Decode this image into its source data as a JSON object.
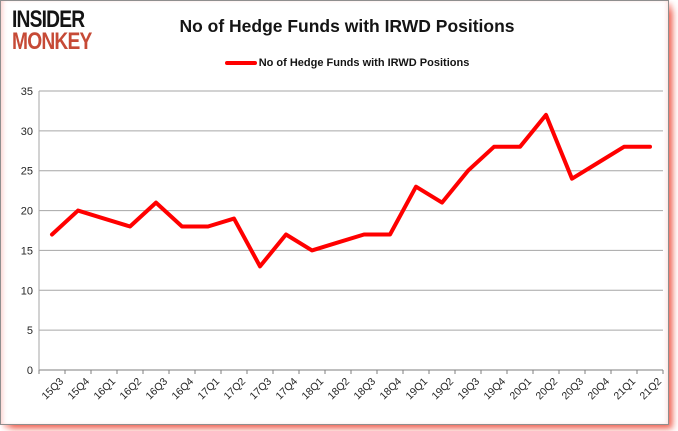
{
  "logo": {
    "line1": "INSIDER",
    "line2": "MONKEY"
  },
  "header": {
    "title": "No of Hedge Funds with IRWD Positions"
  },
  "legend": {
    "label": "No of Hedge Funds with IRWD Positions"
  },
  "colors": {
    "line": "#ff0000",
    "logo_black": "#141414",
    "logo_red": "#c64a36",
    "grid": "#a6a6a6",
    "axis": "#7f7f7f",
    "tick_text": "#262626"
  },
  "chart_data": {
    "type": "line",
    "title": "No of Hedge Funds with IRWD Positions",
    "categories": [
      "15Q3",
      "15Q4",
      "16Q1",
      "16Q2",
      "16Q3",
      "16Q4",
      "17Q1",
      "17Q2",
      "17Q3",
      "17Q4",
      "18Q1",
      "18Q2",
      "18Q3",
      "18Q4",
      "19Q1",
      "19Q2",
      "19Q3",
      "19Q4",
      "20Q1",
      "20Q2",
      "20Q3",
      "20Q4",
      "21Q1",
      "21Q2"
    ],
    "values": [
      17,
      20,
      19,
      18,
      21,
      18,
      18,
      19,
      13,
      17,
      15,
      16,
      17,
      17,
      23,
      21,
      25,
      28,
      28,
      32,
      24,
      26,
      28,
      28
    ],
    "series_name": "No of Hedge Funds with IRWD Positions",
    "xlabel": "",
    "ylabel": "",
    "ylim": [
      0,
      35
    ],
    "ytick_step": 5,
    "grid": true,
    "legend_position": "top-center"
  }
}
